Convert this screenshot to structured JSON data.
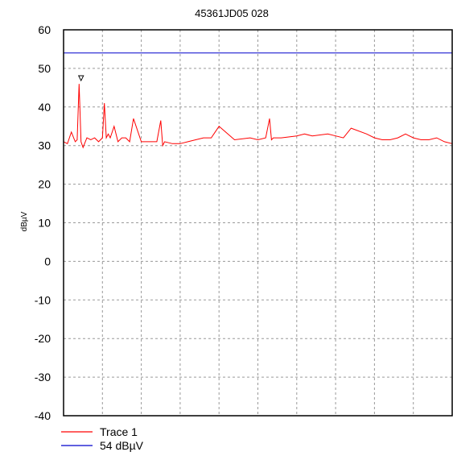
{
  "chart_data": {
    "type": "line",
    "title": "45361JD05 028",
    "xlabel": "",
    "ylabel": "dBµV",
    "ylim": [
      -40,
      60
    ],
    "y_ticks": [
      60,
      50,
      40,
      30,
      20,
      10,
      0,
      -10,
      -20,
      -30,
      -40
    ],
    "x_tick_labels": [],
    "grid": true,
    "legend_position": "bottom-left",
    "colors": {
      "trace": "#ff0000",
      "limit": "#0000cc",
      "grid": "#9a9a9a",
      "axis": "#000000"
    },
    "series": [
      {
        "name": "Trace 1",
        "kind": "trace",
        "x": [
          0,
          0.01,
          0.02,
          0.03,
          0.035,
          0.04,
          0.045,
          0.05,
          0.06,
          0.07,
          0.08,
          0.09,
          0.1,
          0.105,
          0.11,
          0.115,
          0.12,
          0.13,
          0.14,
          0.15,
          0.16,
          0.17,
          0.18,
          0.2,
          0.22,
          0.24,
          0.25,
          0.255,
          0.26,
          0.28,
          0.3,
          0.32,
          0.34,
          0.36,
          0.38,
          0.4,
          0.44,
          0.48,
          0.5,
          0.52,
          0.53,
          0.535,
          0.54,
          0.56,
          0.6,
          0.62,
          0.64,
          0.68,
          0.7,
          0.72,
          0.74,
          0.78,
          0.8,
          0.82,
          0.84,
          0.86,
          0.88,
          0.9,
          0.92,
          0.94,
          0.96,
          0.98,
          1.0
        ],
        "y": [
          31,
          30.5,
          33.5,
          31,
          31.5,
          46,
          31,
          29.5,
          32,
          31.5,
          32,
          31,
          32,
          41,
          32,
          33,
          32,
          35,
          31,
          32,
          32,
          31,
          37,
          31,
          31,
          31,
          36.5,
          30,
          31,
          30.5,
          30.5,
          31,
          31.5,
          32,
          32,
          35,
          31.5,
          32,
          31.5,
          32,
          37,
          31.5,
          32,
          32,
          32.5,
          33,
          32.5,
          33,
          32.5,
          32,
          34.5,
          33,
          32,
          31.5,
          31.5,
          32,
          33,
          32,
          31.5,
          31.5,
          32,
          31,
          30.5
        ]
      },
      {
        "name": "54 dBµV",
        "kind": "limit",
        "x": [
          0,
          1
        ],
        "y": [
          54,
          54
        ]
      }
    ],
    "marker": {
      "series": "Trace 1",
      "x": 0.045,
      "y": 46,
      "shape": "inverted-triangle"
    }
  }
}
